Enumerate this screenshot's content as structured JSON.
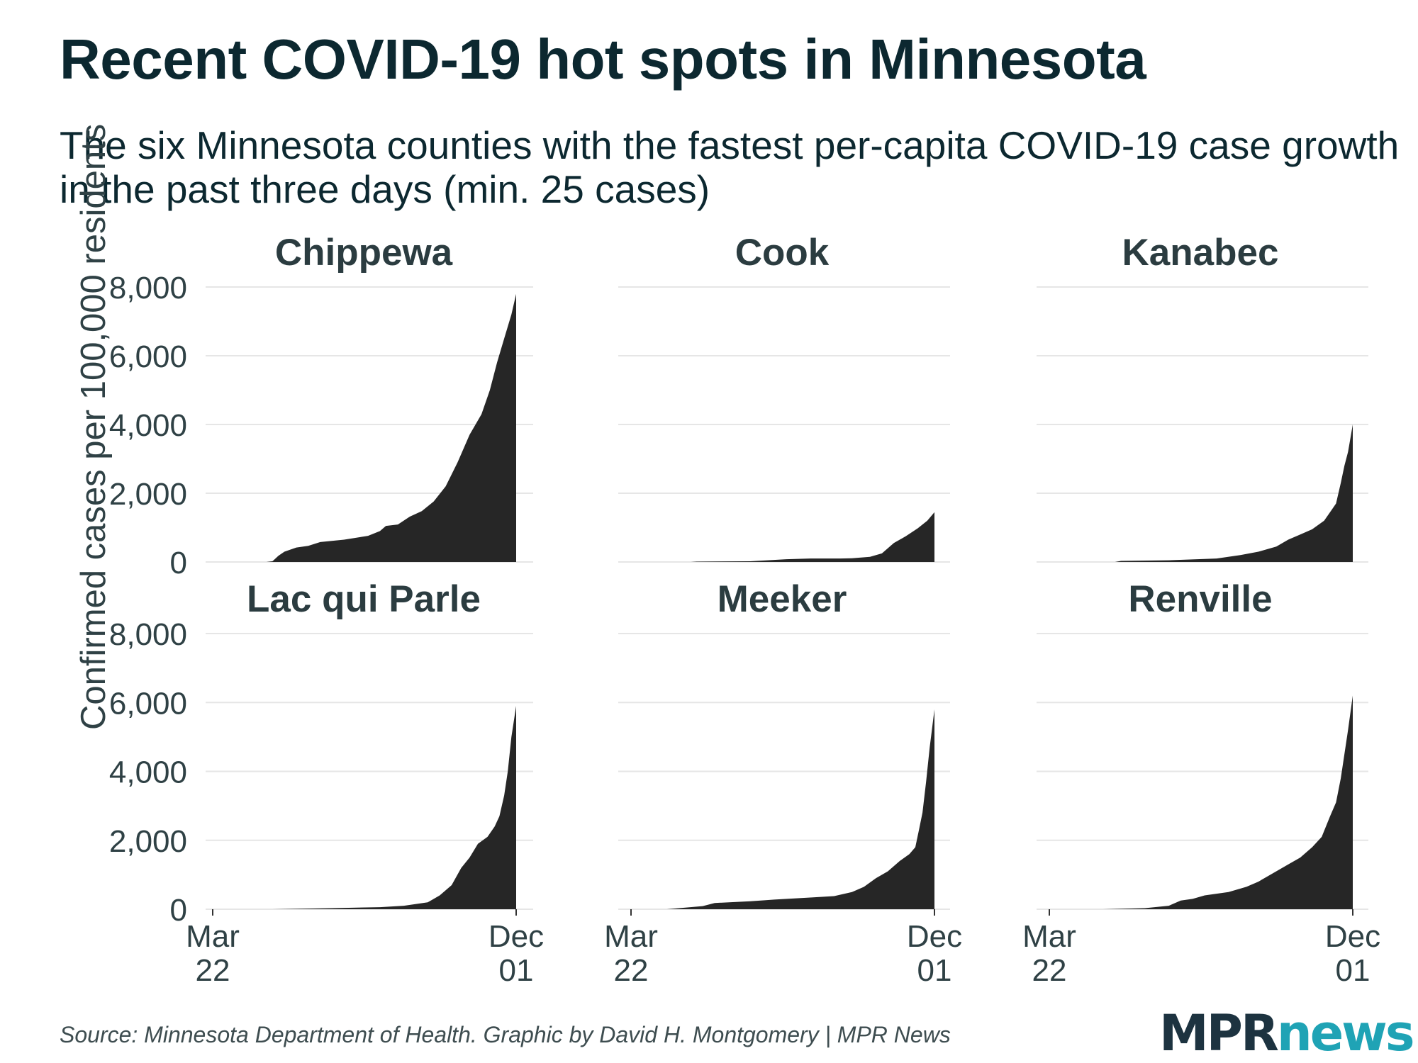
{
  "title": "Recent COVID-19 hot spots in Minnesota",
  "subtitle": "The six Minnesota counties with the fastest per-capita COVID-19 case growth in the past three days (min. 25 cases)",
  "source": "Source: Minnesota Department of Health. Graphic by David H. Montgomery | MPR News",
  "logo": {
    "part1": "MPR",
    "part2": "news"
  },
  "colors": {
    "fill": "#262626",
    "grid": "#e6e6e6",
    "text": "#0c2830",
    "axis_text": "#2f4145",
    "logo_news": "#1fa3b5"
  },
  "chart_data": {
    "type": "area",
    "ylabel": "Confirmed cases per 100,000 residents",
    "ylim": [
      0,
      8000
    ],
    "yticks": [
      0,
      2000,
      4000,
      6000,
      8000
    ],
    "ytick_labels": [
      "0",
      "2,000",
      "4,000",
      "6,000",
      "8,000"
    ],
    "xlim_days": [
      0,
      254
    ],
    "xticks": [
      {
        "day": 0,
        "line1": "Mar",
        "line2": "22"
      },
      {
        "day": 254,
        "line1": "Dec",
        "line2": "01"
      }
    ],
    "x_unit": "days since Mar 22",
    "panels": [
      {
        "name": "Chippewa",
        "points": [
          [
            0,
            0
          ],
          [
            45,
            0
          ],
          [
            50,
            20
          ],
          [
            55,
            180
          ],
          [
            60,
            300
          ],
          [
            70,
            420
          ],
          [
            80,
            470
          ],
          [
            90,
            580
          ],
          [
            110,
            650
          ],
          [
            130,
            760
          ],
          [
            140,
            900
          ],
          [
            145,
            1050
          ],
          [
            155,
            1090
          ],
          [
            165,
            1320
          ],
          [
            175,
            1480
          ],
          [
            185,
            1760
          ],
          [
            195,
            2200
          ],
          [
            205,
            2900
          ],
          [
            215,
            3700
          ],
          [
            225,
            4300
          ],
          [
            232,
            5000
          ],
          [
            238,
            5800
          ],
          [
            244,
            6500
          ],
          [
            250,
            7200
          ],
          [
            254,
            7800
          ]
        ]
      },
      {
        "name": "Cook",
        "points": [
          [
            0,
            0
          ],
          [
            50,
            0
          ],
          [
            55,
            10
          ],
          [
            100,
            20
          ],
          [
            130,
            80
          ],
          [
            150,
            100
          ],
          [
            175,
            100
          ],
          [
            185,
            110
          ],
          [
            200,
            150
          ],
          [
            210,
            250
          ],
          [
            220,
            550
          ],
          [
            230,
            750
          ],
          [
            240,
            980
          ],
          [
            248,
            1200
          ],
          [
            254,
            1450
          ]
        ]
      },
      {
        "name": "Kanabec",
        "points": [
          [
            0,
            0
          ],
          [
            55,
            0
          ],
          [
            60,
            30
          ],
          [
            100,
            50
          ],
          [
            140,
            100
          ],
          [
            160,
            200
          ],
          [
            175,
            300
          ],
          [
            190,
            450
          ],
          [
            200,
            650
          ],
          [
            210,
            800
          ],
          [
            220,
            950
          ],
          [
            230,
            1200
          ],
          [
            236,
            1500
          ],
          [
            240,
            1700
          ],
          [
            244,
            2300
          ],
          [
            247,
            2800
          ],
          [
            250,
            3200
          ],
          [
            254,
            4000
          ]
        ]
      },
      {
        "name": "Lac qui Parle",
        "points": [
          [
            0,
            0
          ],
          [
            50,
            0
          ],
          [
            100,
            30
          ],
          [
            140,
            60
          ],
          [
            160,
            100
          ],
          [
            180,
            200
          ],
          [
            190,
            400
          ],
          [
            200,
            700
          ],
          [
            208,
            1200
          ],
          [
            215,
            1500
          ],
          [
            222,
            1900
          ],
          [
            230,
            2100
          ],
          [
            236,
            2400
          ],
          [
            240,
            2700
          ],
          [
            244,
            3300
          ],
          [
            247,
            4000
          ],
          [
            250,
            5000
          ],
          [
            254,
            5900
          ]
        ]
      },
      {
        "name": "Meeker",
        "points": [
          [
            0,
            0
          ],
          [
            30,
            0
          ],
          [
            60,
            90
          ],
          [
            70,
            180
          ],
          [
            100,
            230
          ],
          [
            120,
            280
          ],
          [
            150,
            340
          ],
          [
            170,
            380
          ],
          [
            185,
            500
          ],
          [
            195,
            650
          ],
          [
            205,
            900
          ],
          [
            215,
            1100
          ],
          [
            225,
            1400
          ],
          [
            233,
            1600
          ],
          [
            238,
            1800
          ],
          [
            241,
            2300
          ],
          [
            244,
            2800
          ],
          [
            247,
            3700
          ],
          [
            250,
            4700
          ],
          [
            254,
            5800
          ]
        ]
      },
      {
        "name": "Renville",
        "points": [
          [
            0,
            0
          ],
          [
            45,
            0
          ],
          [
            80,
            30
          ],
          [
            100,
            100
          ],
          [
            110,
            250
          ],
          [
            120,
            300
          ],
          [
            130,
            400
          ],
          [
            150,
            500
          ],
          [
            165,
            650
          ],
          [
            175,
            800
          ],
          [
            185,
            1000
          ],
          [
            200,
            1300
          ],
          [
            210,
            1500
          ],
          [
            220,
            1800
          ],
          [
            228,
            2100
          ],
          [
            235,
            2700
          ],
          [
            240,
            3100
          ],
          [
            244,
            3800
          ],
          [
            247,
            4500
          ],
          [
            250,
            5200
          ],
          [
            254,
            6200
          ]
        ]
      }
    ]
  }
}
